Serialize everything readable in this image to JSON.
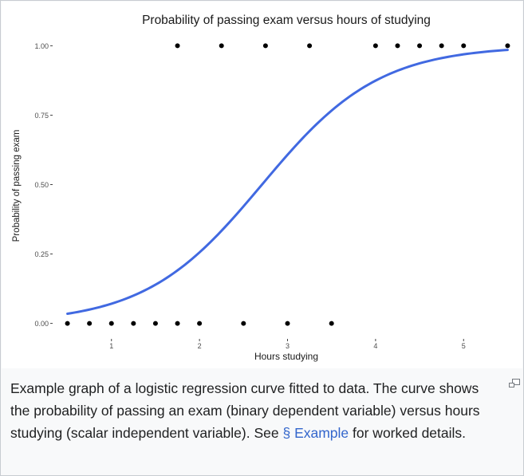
{
  "chart_data": {
    "type": "scatter",
    "title": "Probability of passing exam versus hours of studying",
    "xlabel": "Hours studying",
    "ylabel": "Probability of passing exam",
    "xlim": [
      0.35,
      5.65
    ],
    "ylim": [
      -0.05,
      1.05
    ],
    "x_ticks": [
      1,
      2,
      3,
      4,
      5
    ],
    "x_tick_labels": [
      "1",
      "2",
      "3",
      "4",
      "5"
    ],
    "y_ticks": [
      0,
      0.25,
      0.5,
      0.75,
      1
    ],
    "y_tick_labels": [
      "0.00",
      "0.25",
      "0.50",
      "0.75",
      "1.00"
    ],
    "grid": false,
    "points": {
      "x": [
        0.5,
        0.75,
        1.0,
        1.25,
        1.5,
        1.75,
        1.75,
        2.0,
        2.25,
        2.5,
        2.75,
        3.0,
        3.25,
        3.5,
        4.0,
        4.25,
        4.5,
        4.75,
        5.0,
        5.5
      ],
      "y": [
        0,
        0,
        0,
        0,
        0,
        0,
        1,
        0,
        1,
        0,
        1,
        0,
        1,
        0,
        1,
        1,
        1,
        1,
        1,
        1
      ],
      "color": "#000000"
    },
    "curve": {
      "type": "logistic",
      "intercept": -4.0777,
      "slope": 1.5046,
      "x_range": [
        0.5,
        5.5
      ],
      "color": "#4169e1"
    }
  },
  "caption": {
    "text_before": "Example graph of a logistic regression curve fitted to data. The curve shows the probability of passing an exam (binary dependent variable) versus hours studying (scalar independent variable). See ",
    "link": "§ Example",
    "text_after": " for worked details."
  },
  "icons": {
    "enlarge": "magnify-clip-icon"
  }
}
